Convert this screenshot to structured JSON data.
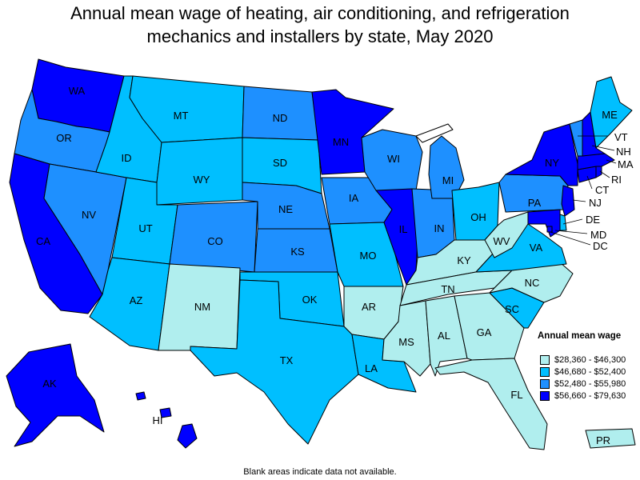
{
  "title": {
    "line1": "Annual mean wage of heating, air conditioning, and refrigeration",
    "line2": "mechanics and installers by state, May 2020"
  },
  "legend": {
    "title": "Annual mean wage",
    "items": [
      {
        "label": "$28,360 - $46,300",
        "color": "#b0eeee"
      },
      {
        "label": "$46,680 - $52,400",
        "color": "#00bfff"
      },
      {
        "label": "$52,480 - $55,980",
        "color": "#1e90ff"
      },
      {
        "label": "$56,660 - $79,630",
        "color": "#0000ff"
      }
    ]
  },
  "footnote": "Blank areas indicate data not available.",
  "states": {
    "WA": 3,
    "OR": 2,
    "CA": 3,
    "NV": 2,
    "ID": 1,
    "MT": 1,
    "WY": 1,
    "UT": 1,
    "AZ": 1,
    "CO": 2,
    "NM": 0,
    "ND": 2,
    "SD": 1,
    "NE": 2,
    "KS": 2,
    "OK": 1,
    "TX": 1,
    "MN": 3,
    "IA": 2,
    "MO": 1,
    "AR": 0,
    "LA": 1,
    "WI": 2,
    "IL": 3,
    "MI": 2,
    "IN": 2,
    "OH": 1,
    "KY": 0,
    "TN": 0,
    "MS": 0,
    "AL": 0,
    "GA": 0,
    "FL": 0,
    "SC": 1,
    "NC": 0,
    "VA": 1,
    "WV": 0,
    "PA": 2,
    "NY": 3,
    "ME": 1,
    "VT": 2,
    "NH": 3,
    "MA": 3,
    "RI": 3,
    "CT": 3,
    "NJ": 3,
    "DE": 1,
    "MD": 3,
    "DC": 3,
    "AK": 3,
    "HI": 3,
    "PR": 0
  }
}
